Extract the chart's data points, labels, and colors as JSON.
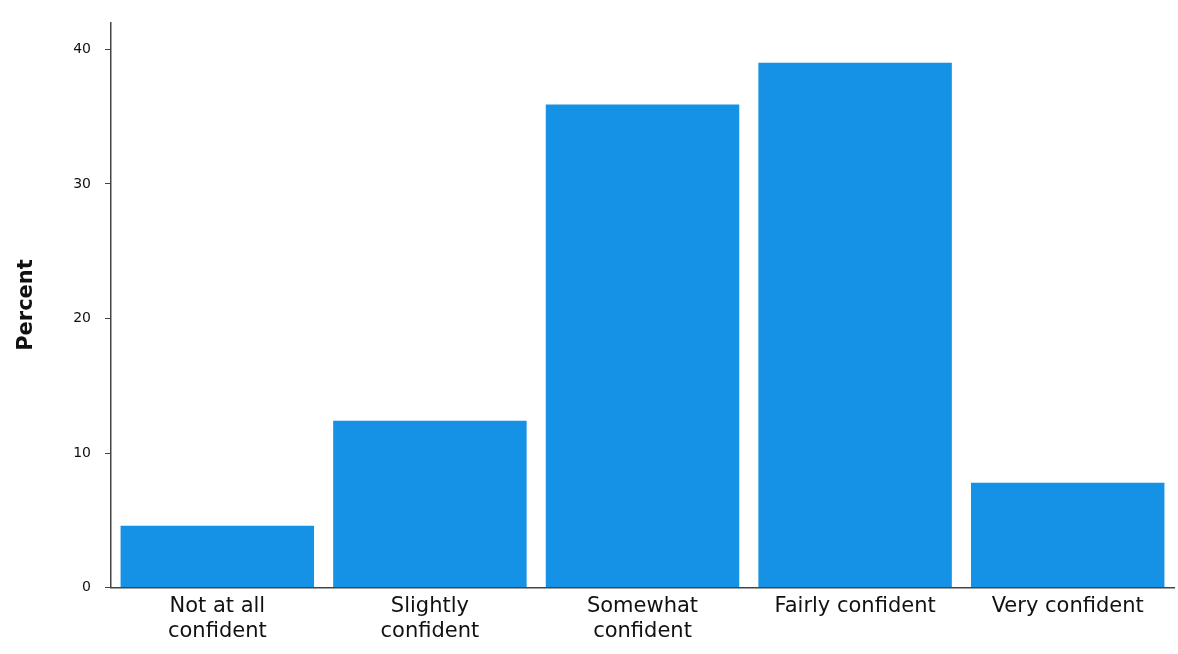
{
  "chart_data": {
    "type": "bar",
    "ylabel": "Percent",
    "categories": [
      "Not at all confident",
      "Slightly confident",
      "Somewhat confident",
      "Fairly confident",
      "Very confident"
    ],
    "values": [
      4.6,
      12.4,
      35.9,
      39.0,
      7.8
    ],
    "color": "#1591e6",
    "ylim": [
      0,
      42
    ],
    "yticks": [
      0,
      10,
      20,
      30,
      40
    ],
    "grid": false,
    "legend": false
  }
}
